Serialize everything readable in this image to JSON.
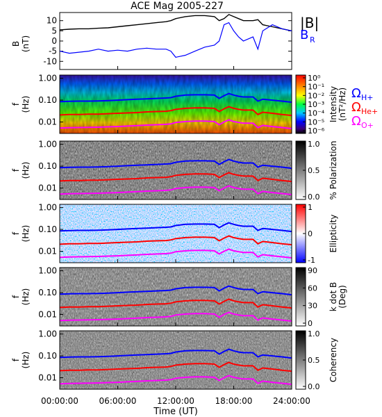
{
  "title": "ACE Mag 2005-227",
  "legend": {
    "b_mag": "|B|",
    "b_r": "B",
    "b_r_sub": "R",
    "h": "Ω",
    "h_sub": "H+",
    "he": "Ω",
    "he_sub": "He+",
    "o": "Ω",
    "o_sub": "O+"
  },
  "colors": {
    "b_mag": "#000000",
    "b_r": "#0000ff",
    "h_plus": "#0000ff",
    "he_plus": "#ff0000",
    "o_plus": "#ff00ff"
  },
  "x_axis": {
    "label": "Time (UT)",
    "ticks": [
      "00:00:00",
      "06:00:00",
      "12:00:00",
      "18:00:00",
      "24:00:00"
    ],
    "range_hours": [
      0,
      24
    ]
  },
  "chart_data": [
    {
      "type": "line",
      "name": "B field",
      "ylabel": "B",
      "yunit": "(nT)",
      "ylim": [
        -14,
        14
      ],
      "yticks": [
        "10",
        "5",
        "0",
        "-5",
        "-10"
      ],
      "ytick_values": [
        10,
        5,
        0,
        -5,
        -10
      ],
      "x": [
        0,
        1,
        2,
        3,
        4,
        5,
        6,
        7,
        8,
        9,
        10,
        11,
        11.5,
        12,
        13,
        14,
        15,
        16,
        16.5,
        17,
        17.5,
        18,
        18.5,
        19,
        20,
        20.5,
        21,
        22,
        23,
        24
      ],
      "series": [
        {
          "key": "b_mag",
          "values": [
            5.5,
            5.8,
            6,
            6,
            6.3,
            6.5,
            7,
            7.5,
            8,
            8.5,
            9,
            9.5,
            10,
            11,
            12,
            12.5,
            12.5,
            12,
            10,
            11,
            13,
            12,
            11,
            10,
            10,
            10.5,
            8,
            7,
            6,
            5
          ]
        },
        {
          "key": "b_r",
          "values": [
            -5,
            -6,
            -5.5,
            -5,
            -4,
            -5,
            -4.5,
            -5,
            -4,
            -3.5,
            -4,
            -4,
            -5,
            -8,
            -7,
            -5,
            -3,
            -2,
            0,
            8,
            9,
            5,
            2,
            0,
            2,
            -4,
            5,
            8,
            6,
            5
          ]
        }
      ]
    },
    {
      "type": "heatmap",
      "name": "intensity",
      "ylabel": "f",
      "yunit": "(Hz)",
      "yticks": [
        "1.00",
        "0.10",
        "0.01"
      ],
      "colorbar": {
        "title": "Intensity",
        "unit": "(nT²/Hz)",
        "ticks": [
          "10⁰",
          "10⁻¹",
          "10⁻²",
          "10⁻³",
          "10⁻⁴",
          "10⁻⁵",
          "10⁻⁶"
        ]
      }
    },
    {
      "type": "heatmap",
      "name": "polarization",
      "ylabel": "f",
      "yunit": "(Hz)",
      "yticks": [
        "1.00",
        "0.10",
        "0.01"
      ],
      "colorbar": {
        "title": "% Polarization",
        "ticks": [
          "1.0",
          "0.5",
          "0.0"
        ]
      }
    },
    {
      "type": "heatmap",
      "name": "ellipticity",
      "ylabel": "f",
      "yunit": "(Hz)",
      "yticks": [
        "1.00",
        "0.10",
        "0.01"
      ],
      "colorbar": {
        "title": "Ellipticity",
        "ticks": [
          "1",
          "0",
          "-1"
        ]
      }
    },
    {
      "type": "heatmap",
      "name": "k dot B",
      "ylabel": "f",
      "yunit": "(Hz)",
      "yticks": [
        "1.00",
        "0.10",
        "0.01"
      ],
      "colorbar": {
        "title": "k dot B",
        "unit": "(Deg)",
        "ticks": [
          "90",
          "60",
          "30",
          "0"
        ]
      }
    },
    {
      "type": "heatmap",
      "name": "coherency",
      "ylabel": "f",
      "yunit": "(Hz)",
      "yticks": [
        "1.00",
        "0.10",
        "0.01"
      ],
      "colorbar": {
        "title": "Coherency",
        "ticks": [
          "1.0",
          "0.5",
          "0.0"
        ]
      }
    }
  ],
  "gyrofrequency_hz": {
    "x": [
      0,
      1,
      2,
      3,
      4,
      5,
      6,
      7,
      8,
      9,
      10,
      11,
      11.5,
      12,
      13,
      14,
      15,
      16,
      16.5,
      17,
      17.5,
      18,
      18.5,
      19,
      20,
      20.5,
      21,
      22,
      23,
      24
    ],
    "h_plus": [
      0.085,
      0.088,
      0.09,
      0.09,
      0.092,
      0.095,
      0.1,
      0.105,
      0.11,
      0.115,
      0.12,
      0.125,
      0.13,
      0.15,
      0.17,
      0.175,
      0.175,
      0.17,
      0.12,
      0.16,
      0.2,
      0.17,
      0.15,
      0.14,
      0.14,
      0.09,
      0.11,
      0.1,
      0.09,
      0.08
    ],
    "he_plus": [
      0.021,
      0.022,
      0.022,
      0.023,
      0.023,
      0.024,
      0.025,
      0.026,
      0.027,
      0.029,
      0.03,
      0.031,
      0.033,
      0.038,
      0.042,
      0.044,
      0.044,
      0.042,
      0.03,
      0.04,
      0.05,
      0.042,
      0.038,
      0.035,
      0.035,
      0.022,
      0.028,
      0.025,
      0.022,
      0.02
    ],
    "o_plus": [
      0.0053,
      0.0055,
      0.0056,
      0.0057,
      0.0058,
      0.006,
      0.0062,
      0.0065,
      0.0068,
      0.0072,
      0.0075,
      0.0078,
      0.0082,
      0.0095,
      0.0105,
      0.011,
      0.011,
      0.0105,
      0.0075,
      0.01,
      0.0125,
      0.0105,
      0.0095,
      0.0088,
      0.0088,
      0.0055,
      0.007,
      0.0062,
      0.0056,
      0.005
    ]
  }
}
